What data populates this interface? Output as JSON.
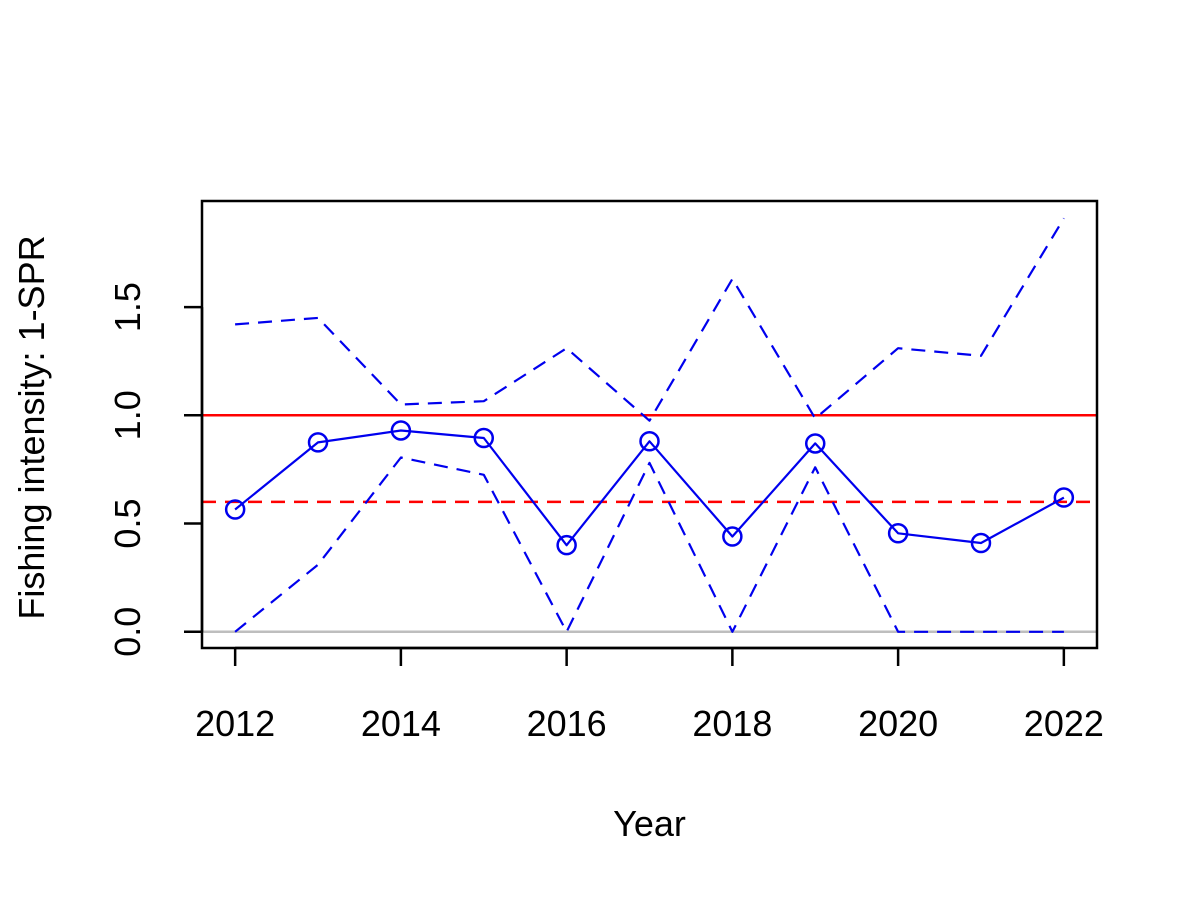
{
  "chart_data": {
    "type": "line",
    "title": "",
    "xlabel": "Year",
    "ylabel": "Fishing intensity: 1-SPR",
    "x": [
      2012,
      2013,
      2014,
      2015,
      2016,
      2017,
      2018,
      2019,
      2020,
      2021,
      2022
    ],
    "xlim": [
      2011.6,
      2022.4
    ],
    "ylim": [
      -0.075,
      1.99
    ],
    "x_ticks": [
      2012,
      2014,
      2016,
      2018,
      2020,
      2022
    ],
    "y_ticks": [
      0.0,
      0.5,
      1.0,
      1.5
    ],
    "x_tick_labels": [
      "2012",
      "2014",
      "2016",
      "2018",
      "2020",
      "2022"
    ],
    "y_tick_labels": [
      "0.0",
      "0.5",
      "1.0",
      "1.5"
    ],
    "grid": false,
    "legend": "none",
    "series": [
      {
        "role": "estimate",
        "style": "solid-with-circles",
        "color": "#0000ee",
        "values": [
          0.565,
          0.875,
          0.93,
          0.895,
          0.4,
          0.88,
          0.44,
          0.87,
          0.455,
          0.41,
          0.62
        ]
      },
      {
        "role": "upper-interval",
        "style": "dashed",
        "color": "#0000ee",
        "values": [
          1.42,
          1.45,
          1.05,
          1.065,
          1.31,
          0.975,
          1.63,
          0.985,
          1.31,
          1.275,
          1.91
        ]
      },
      {
        "role": "lower-interval",
        "style": "dashed",
        "color": "#0000ee",
        "values": [
          0.0,
          0.31,
          0.805,
          0.725,
          0.0,
          0.78,
          0.0,
          0.76,
          0.0,
          0.0,
          0.0
        ]
      }
    ],
    "reference_lines": [
      {
        "y": 1.0,
        "style": "solid",
        "color": "#ff0000"
      },
      {
        "y": 0.6,
        "style": "dashed",
        "color": "#ff0000"
      },
      {
        "y": 0.0,
        "style": "solid",
        "color": "#bebebe"
      }
    ]
  }
}
